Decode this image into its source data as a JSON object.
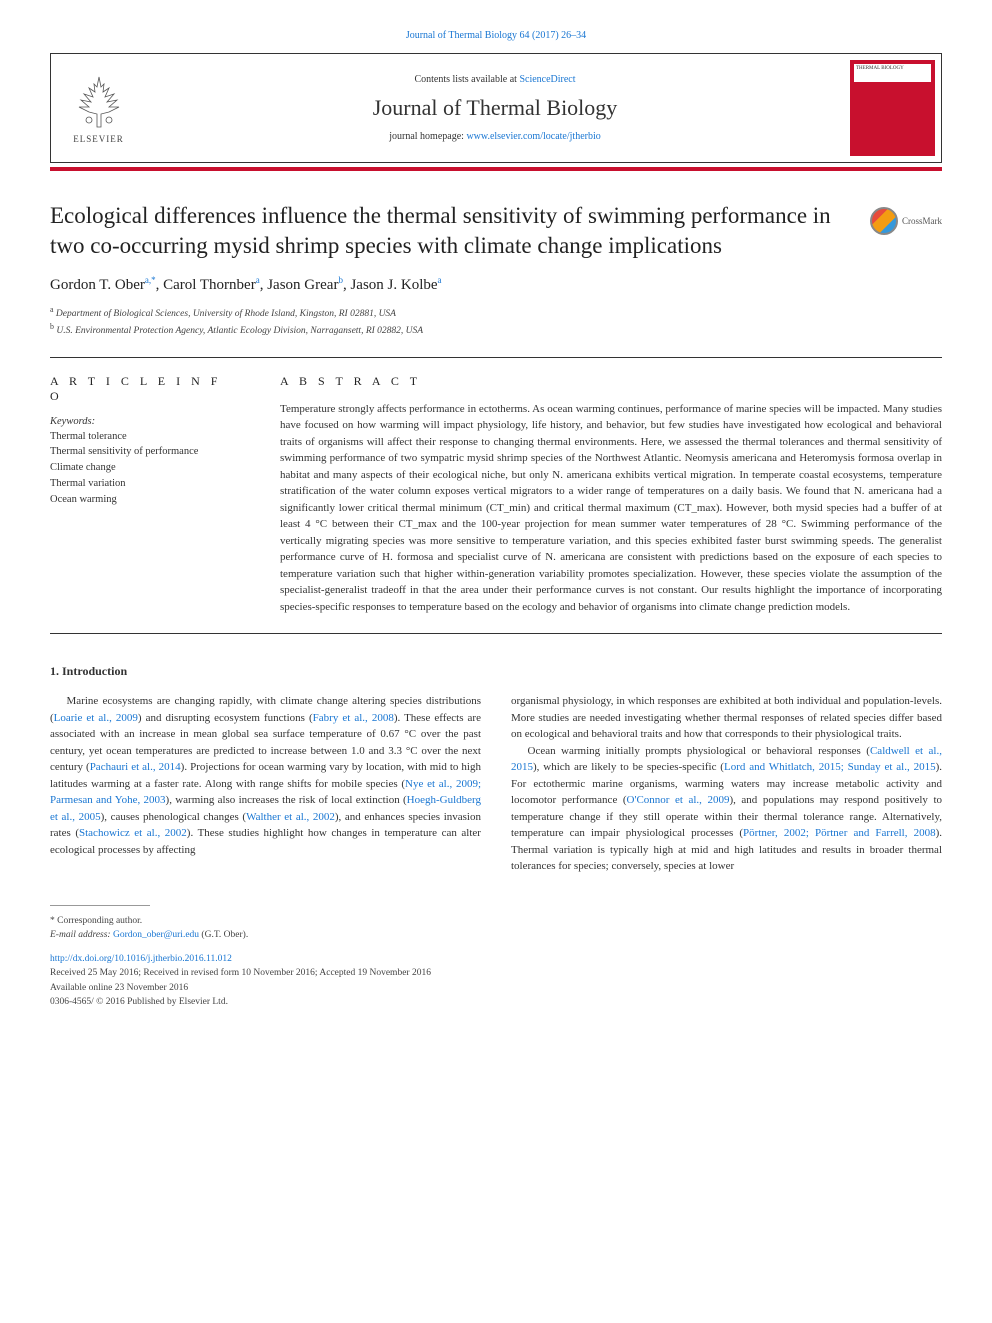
{
  "meta": {
    "top_citation": "Journal of Thermal Biology 64 (2017) 26–34",
    "contents_prefix": "Contents lists available at ",
    "contents_link": "ScienceDirect",
    "journal_name": "Journal of Thermal Biology",
    "homepage_prefix": "journal homepage: ",
    "homepage_link": "www.elsevier.com/locate/jtherbio",
    "elsevier_label": "ELSEVIER",
    "cover_label": "THERMAL BIOLOGY",
    "crossmark": "CrossMark"
  },
  "article": {
    "title": "Ecological differences influence the thermal sensitivity of swimming performance in two co-occurring mysid shrimp species with climate change implications",
    "authors_html": "Gordon T. Ober<sup>a,*</sup>, Carol Thornber<sup>a</sup>, Jason Grear<sup>b</sup>, Jason J. Kolbe<sup>a</sup>",
    "affiliations": [
      {
        "marker": "a",
        "text": "Department of Biological Sciences, University of Rhode Island, Kingston, RI 02881, USA"
      },
      {
        "marker": "b",
        "text": "U.S. Environmental Protection Agency, Atlantic Ecology Division, Narragansett, RI 02882, USA"
      }
    ]
  },
  "info": {
    "heading": "A R T I C L E  I N F O",
    "keywords_label": "Keywords:",
    "keywords": [
      "Thermal tolerance",
      "Thermal sensitivity of performance",
      "Climate change",
      "Thermal variation",
      "Ocean warming"
    ]
  },
  "abstract": {
    "heading": "A B S T R A C T",
    "text": "Temperature strongly affects performance in ectotherms. As ocean warming continues, performance of marine species will be impacted. Many studies have focused on how warming will impact physiology, life history, and behavior, but few studies have investigated how ecological and behavioral traits of organisms will affect their response to changing thermal environments. Here, we assessed the thermal tolerances and thermal sensitivity of swimming performance of two sympatric mysid shrimp species of the Northwest Atlantic. Neomysis americana and Heteromysis formosa overlap in habitat and many aspects of their ecological niche, but only N. americana exhibits vertical migration. In temperate coastal ecosystems, temperature stratification of the water column exposes vertical migrators to a wider range of temperatures on a daily basis. We found that N. americana had a significantly lower critical thermal minimum (CT_min) and critical thermal maximum (CT_max). However, both mysid species had a buffer of at least 4 °C between their CT_max and the 100-year projection for mean summer water temperatures of 28 °C. Swimming performance of the vertically migrating species was more sensitive to temperature variation, and this species exhibited faster burst swimming speeds. The generalist performance curve of H. formosa and specialist curve of N. americana are consistent with predictions based on the exposure of each species to temperature variation such that higher within-generation variability promotes specialization. However, these species violate the assumption of the specialist-generalist tradeoff in that the area under their performance curves is not constant. Our results highlight the importance of incorporating species-specific responses to temperature based on the ecology and behavior of organisms into climate change prediction models."
  },
  "body": {
    "heading": "1. Introduction",
    "para1_html": "Marine ecosystems are changing rapidly, with climate change altering species distributions (<span class='cite'>Loarie et al., 2009</span>) and disrupting ecosystem functions (<span class='cite'>Fabry et al., 2008</span>). These effects are associated with an increase in mean global sea surface temperature of 0.67 °C over the past century, yet ocean temperatures are predicted to increase between 1.0 and 3.3 °C over the next century (<span class='cite'>Pachauri et al., 2014</span>). Projections for ocean warming vary by location, with mid to high latitudes warming at a faster rate. Along with range shifts for mobile species (<span class='cite'>Nye et al., 2009; Parmesan and Yohe, 2003</span>), warming also increases the risk of local extinction (<span class='cite'>Hoegh-Guldberg et al., 2005</span>), causes phenological changes (<span class='cite'>Walther et al., 2002</span>), and enhances species invasion rates (<span class='cite'>Stachowicz et al., 2002</span>). These studies highlight how changes in temperature can alter ecological processes by affecting",
    "para1b_html": "organismal physiology, in which responses are exhibited at both individual and population-levels. More studies are needed investigating whether thermal responses of related species differ based on ecological and behavioral traits and how that corresponds to their physiological traits.",
    "para2_html": "Ocean warming initially prompts physiological or behavioral responses (<span class='cite'>Caldwell et al., 2015</span>), which are likely to be species-specific (<span class='cite'>Lord and Whitlatch, 2015; Sunday et al., 2015</span>). For ectothermic marine organisms, warming waters may increase metabolic activity and locomotor performance (<span class='cite'>O'Connor et al., 2009</span>), and populations may respond positively to temperature change if they still operate within their thermal tolerance range. Alternatively, temperature can impair physiological processes (<span class='cite'>Pörtner, 2002; Pörtner and Farrell, 2008</span>). Thermal variation is typically high at mid and high latitudes and results in broader thermal tolerances for species; conversely, species at lower"
  },
  "footer": {
    "corresponding": "* Corresponding author.",
    "email_label": "E-mail address: ",
    "email": "Gordon_ober@uri.edu",
    "email_suffix": " (G.T. Ober).",
    "doi": "http://dx.doi.org/10.1016/j.jtherbio.2016.11.012",
    "received": "Received 25 May 2016; Received in revised form 10 November 2016; Accepted 19 November 2016",
    "available": "Available online 23 November 2016",
    "copyright": "0306-4565/ © 2016 Published by Elsevier Ltd."
  },
  "colors": {
    "brand_red": "#c8102e",
    "link_blue": "#1976d2",
    "text": "#333333",
    "rule": "#333333"
  }
}
